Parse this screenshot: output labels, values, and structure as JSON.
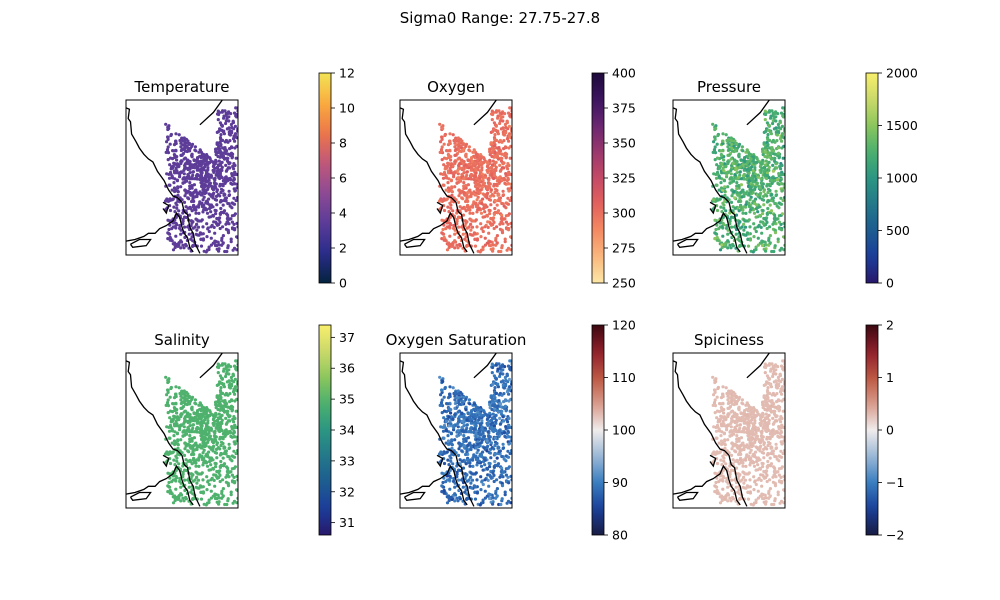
{
  "figure": {
    "title": "Sigma0 Range: 27.75-27.8"
  },
  "chart_data": [
    {
      "type": "scatter",
      "title": "Temperature",
      "colorbar": {
        "range": [
          0,
          12
        ],
        "ticks": [
          "0",
          "2",
          "4",
          "6",
          "8",
          "10",
          "12"
        ],
        "colormap": "thermal"
      },
      "value_model": {
        "mean": 3.5,
        "spread": 0.05
      },
      "marker_color": "#5a3a8f"
    },
    {
      "type": "scatter",
      "title": "Oxygen",
      "colorbar": {
        "range": [
          250,
          400
        ],
        "ticks": [
          "250",
          "275",
          "300",
          "325",
          "350",
          "375",
          "400"
        ],
        "colormap": "magma_r"
      },
      "value_model": {
        "mean": 300,
        "spread": 8
      },
      "marker_color": "#f0a061"
    },
    {
      "type": "scatter",
      "title": "Pressure",
      "colorbar": {
        "range": [
          0,
          2000
        ],
        "ticks": [
          "0",
          "500",
          "1000",
          "1500",
          "2000"
        ],
        "colormap": "haline"
      },
      "value_model": {
        "mean": 1250,
        "spread": 250
      },
      "marker_color": "#5bb56a"
    },
    {
      "type": "scatter",
      "title": "Salinity",
      "colorbar": {
        "range": [
          30.6,
          37.4
        ],
        "ticks": [
          "31",
          "32",
          "33",
          "34",
          "35",
          "36",
          "37"
        ],
        "colormap": "haline"
      },
      "value_model": {
        "mean": 34.9,
        "spread": 0.03
      },
      "marker_color": "#4fae72"
    },
    {
      "type": "scatter",
      "title": "Oxygen Saturation",
      "colorbar": {
        "range": [
          80,
          120
        ],
        "ticks": [
          "80",
          "90",
          "100",
          "110",
          "120"
        ],
        "colormap": "balance"
      },
      "value_model": {
        "mean": 89,
        "spread": 3
      },
      "marker_color": "#2a6fbd"
    },
    {
      "type": "scatter",
      "title": "Spiciness",
      "colorbar": {
        "range": [
          -2,
          2
        ],
        "ticks": [
          "−2",
          "−1",
          "0",
          "1",
          "2"
        ],
        "colormap": "balance"
      },
      "value_model": {
        "mean": 0.3,
        "spread": 0.02
      },
      "marker_color": "#e4cfc5"
    }
  ]
}
